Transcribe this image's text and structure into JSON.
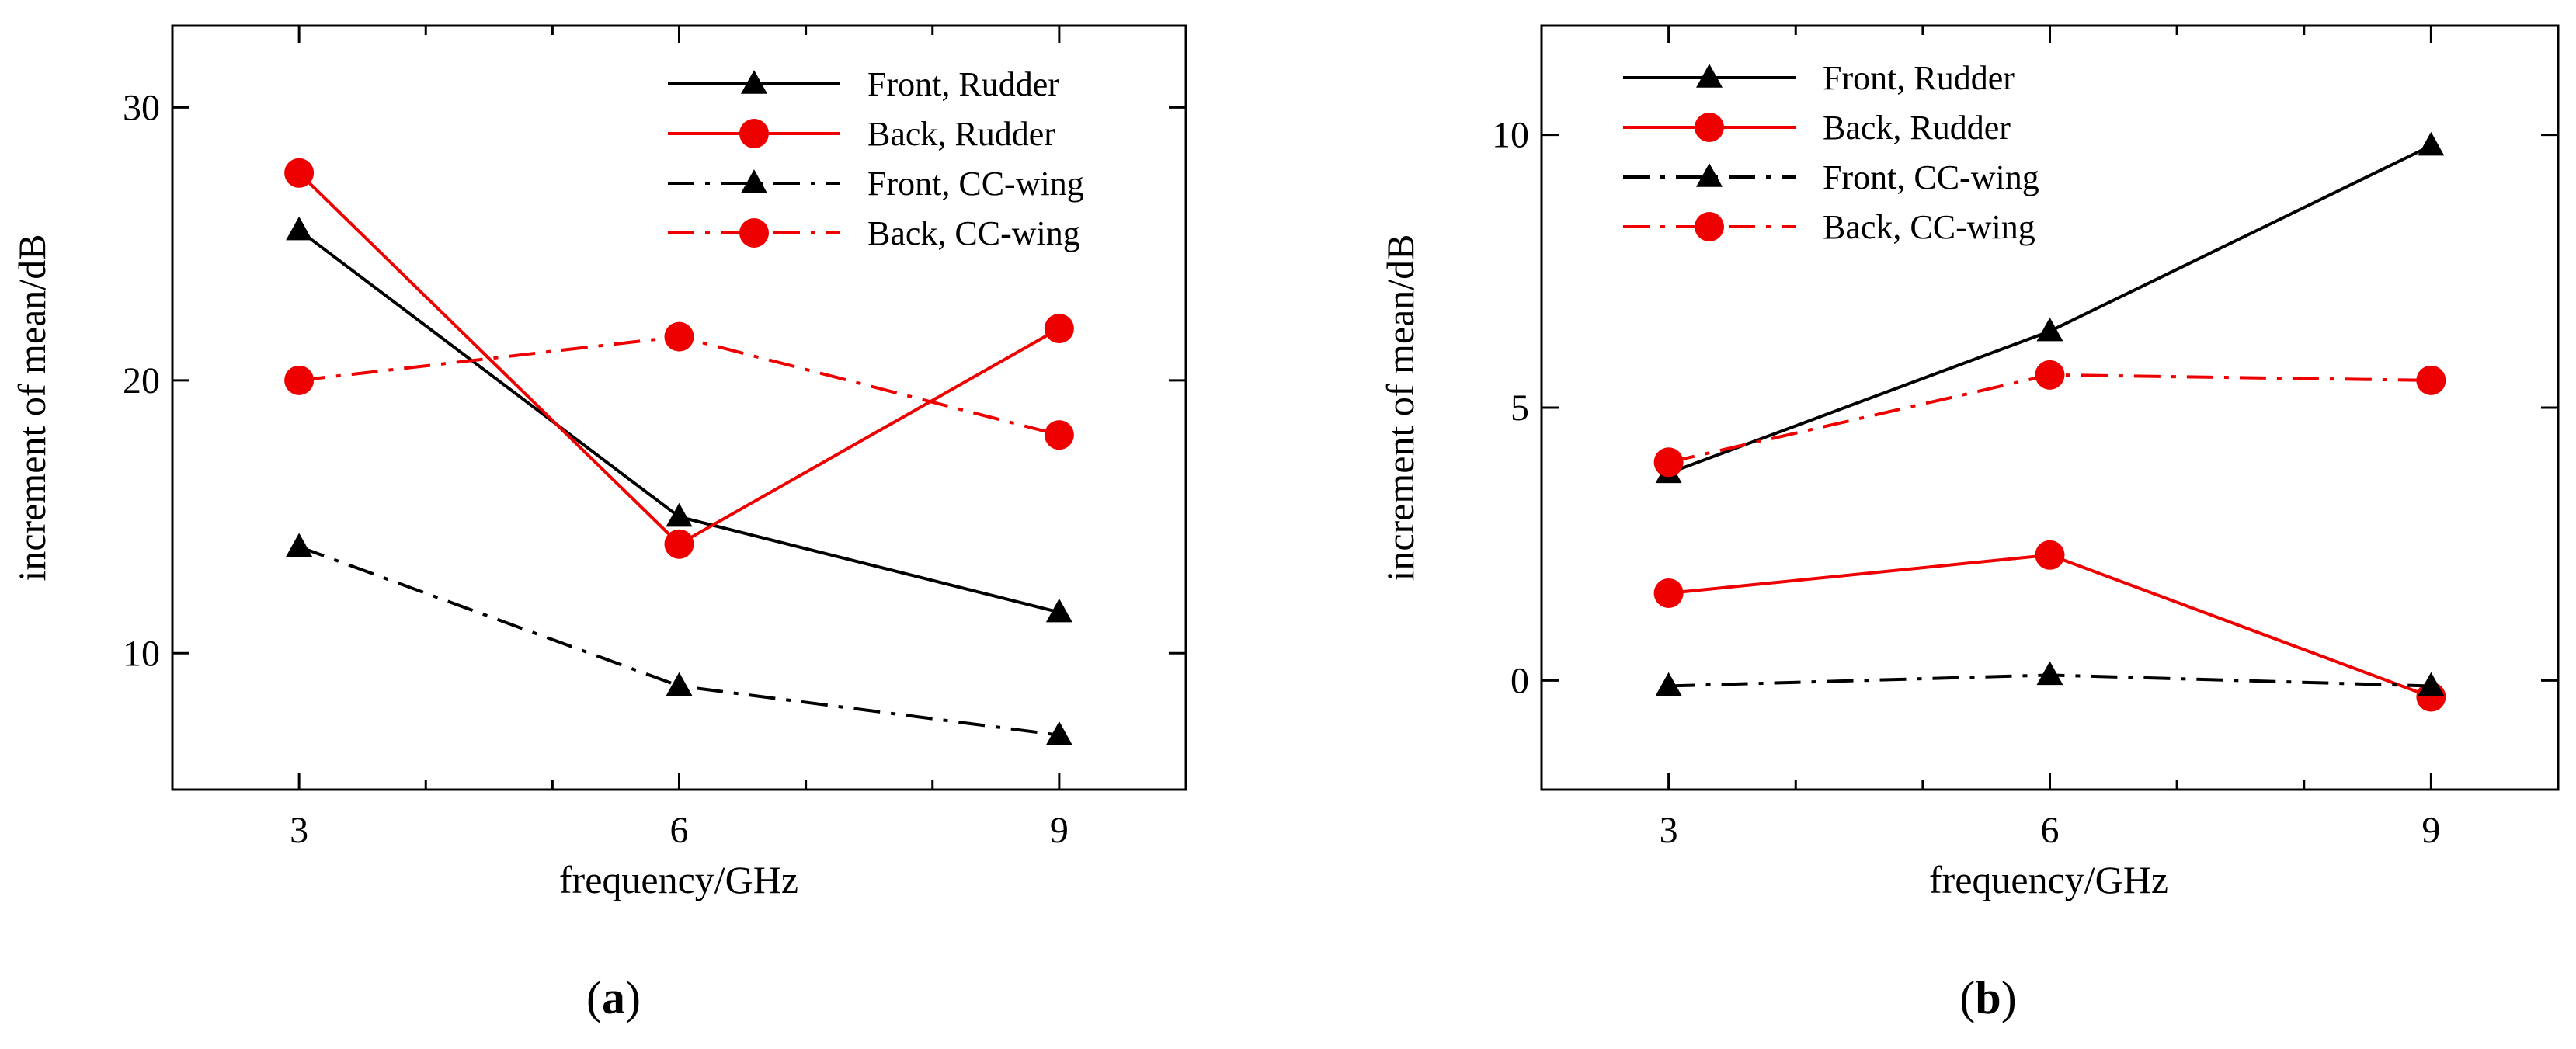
{
  "colors": {
    "black": "#000000",
    "red": "#ee0000",
    "background": "#ffffff"
  },
  "chart_data": [
    {
      "type": "line",
      "panel": "a",
      "panel_label": {
        "open": "(",
        "letter": "a",
        "close": ")"
      },
      "xlabel": "frequency/GHz",
      "ylabel": "increment of mean/dB",
      "x": [
        3,
        6,
        9
      ],
      "xlim": [
        2,
        10
      ],
      "ylim": [
        5,
        33
      ],
      "xticks": [
        3,
        6,
        9
      ],
      "yticks": [
        10,
        20,
        30
      ],
      "series": [
        {
          "name": "Front, Rudder",
          "values": [
            25.5,
            15.0,
            11.5
          ],
          "color": "#000000",
          "dash": "solid",
          "marker": "triangle"
        },
        {
          "name": "Back, Rudder",
          "values": [
            27.6,
            14.0,
            21.9
          ],
          "color": "#ee0000",
          "dash": "solid",
          "marker": "circle"
        },
        {
          "name": "Front, CC-wing",
          "values": [
            13.9,
            8.8,
            7.0
          ],
          "color": "#000000",
          "dash": "dashdot",
          "marker": "triangle"
        },
        {
          "name": "Back, CC-wing",
          "values": [
            20.0,
            21.6,
            18.0
          ],
          "color": "#ee0000",
          "dash": "dashdot",
          "marker": "circle"
        }
      ]
    },
    {
      "type": "line",
      "panel": "b",
      "panel_label": {
        "open": "(",
        "letter": "b",
        "close": ")"
      },
      "xlabel": "frequency/GHz",
      "ylabel": "increment of mean/dB",
      "x": [
        3,
        6,
        9
      ],
      "xlim": [
        2,
        10
      ],
      "ylim": [
        -2,
        12
      ],
      "xticks": [
        3,
        6,
        9
      ],
      "yticks": [
        0,
        5,
        10
      ],
      "series": [
        {
          "name": "Front, Rudder",
          "values": [
            3.8,
            6.4,
            9.8
          ],
          "color": "#000000",
          "dash": "solid",
          "marker": "triangle"
        },
        {
          "name": "Back, Rudder",
          "values": [
            1.6,
            2.3,
            -0.3
          ],
          "color": "#ee0000",
          "dash": "solid",
          "marker": "circle"
        },
        {
          "name": "Front, CC-wing",
          "values": [
            -0.1,
            0.1,
            -0.1
          ],
          "color": "#000000",
          "dash": "dashdot",
          "marker": "triangle"
        },
        {
          "name": "Back, CC-wing",
          "values": [
            4.0,
            5.6,
            5.5
          ],
          "color": "#ee0000",
          "dash": "dashdot",
          "marker": "circle"
        }
      ]
    }
  ]
}
